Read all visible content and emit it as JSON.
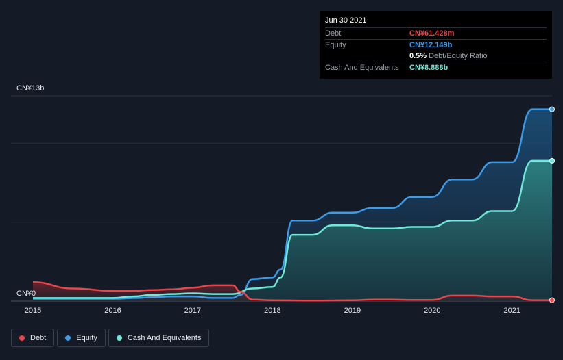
{
  "tooltip": {
    "date": "Jun 30 2021",
    "rows": [
      {
        "name": "Debt",
        "value": "CN¥61.428m",
        "color": "#e8464a"
      },
      {
        "name": "Equity",
        "value": "CN¥12.149b",
        "color": "#3b9be8"
      }
    ],
    "ratio_value": "0.5%",
    "ratio_label": "Debt/Equity Ratio",
    "cash": {
      "name": "Cash And Equivalents",
      "value": "CN¥8.888b",
      "color": "#6fe8d7"
    }
  },
  "legend": [
    {
      "label": "Debt",
      "color": "#e8464a"
    },
    {
      "label": "Equity",
      "color": "#3b9be8"
    },
    {
      "label": "Cash And Equivalents",
      "color": "#6fe8d7"
    }
  ],
  "chart_data": {
    "type": "area",
    "y_top_label": "CN¥13b",
    "y_zero_label": "CN¥0",
    "ylim": [
      0,
      13
    ],
    "y_unit": "CN¥ billions",
    "xlim": [
      2015.0,
      2021.5
    ],
    "x_ticks": [
      {
        "label": "2015",
        "value": 2015
      },
      {
        "label": "2016",
        "value": 2016
      },
      {
        "label": "2017",
        "value": 2017
      },
      {
        "label": "2018",
        "value": 2018
      },
      {
        "label": "2019",
        "value": 2019
      },
      {
        "label": "2020",
        "value": 2020
      },
      {
        "label": "2021",
        "value": 2021
      }
    ],
    "series": [
      {
        "name": "Equity",
        "color": "#3b9be8",
        "points": [
          [
            2015.0,
            0.15
          ],
          [
            2015.5,
            0.15
          ],
          [
            2016.0,
            0.15
          ],
          [
            2016.3,
            0.2
          ],
          [
            2016.5,
            0.25
          ],
          [
            2016.75,
            0.3
          ],
          [
            2017.0,
            0.3
          ],
          [
            2017.25,
            0.2
          ],
          [
            2017.5,
            0.2
          ],
          [
            2017.6,
            0.4
          ],
          [
            2017.75,
            1.4
          ],
          [
            2018.0,
            1.5
          ],
          [
            2018.1,
            2.0
          ],
          [
            2018.25,
            5.1
          ],
          [
            2018.5,
            5.1
          ],
          [
            2018.75,
            5.6
          ],
          [
            2019.0,
            5.6
          ],
          [
            2019.25,
            5.9
          ],
          [
            2019.5,
            5.9
          ],
          [
            2019.75,
            6.6
          ],
          [
            2020.0,
            6.6
          ],
          [
            2020.25,
            7.7
          ],
          [
            2020.5,
            7.7
          ],
          [
            2020.75,
            8.8
          ],
          [
            2021.0,
            8.8
          ],
          [
            2021.25,
            12.149
          ],
          [
            2021.5,
            12.149
          ]
        ]
      },
      {
        "name": "Cash And Equivalents",
        "color": "#6fe8d7",
        "points": [
          [
            2015.0,
            0.2
          ],
          [
            2015.5,
            0.2
          ],
          [
            2016.0,
            0.2
          ],
          [
            2016.25,
            0.3
          ],
          [
            2016.5,
            0.4
          ],
          [
            2016.75,
            0.45
          ],
          [
            2017.0,
            0.5
          ],
          [
            2017.25,
            0.45
          ],
          [
            2017.5,
            0.45
          ],
          [
            2017.75,
            0.8
          ],
          [
            2018.0,
            0.9
          ],
          [
            2018.1,
            1.5
          ],
          [
            2018.25,
            4.2
          ],
          [
            2018.5,
            4.2
          ],
          [
            2018.75,
            4.8
          ],
          [
            2019.0,
            4.8
          ],
          [
            2019.25,
            4.6
          ],
          [
            2019.5,
            4.6
          ],
          [
            2019.75,
            4.7
          ],
          [
            2020.0,
            4.7
          ],
          [
            2020.25,
            5.1
          ],
          [
            2020.5,
            5.1
          ],
          [
            2020.75,
            5.7
          ],
          [
            2021.0,
            5.7
          ],
          [
            2021.25,
            8.888
          ],
          [
            2021.5,
            8.888
          ]
        ]
      },
      {
        "name": "Debt",
        "color": "#e8464a",
        "points": [
          [
            2015.0,
            1.2
          ],
          [
            2015.5,
            0.8
          ],
          [
            2016.0,
            0.65
          ],
          [
            2016.25,
            0.65
          ],
          [
            2016.5,
            0.7
          ],
          [
            2016.75,
            0.75
          ],
          [
            2017.0,
            0.85
          ],
          [
            2017.25,
            1.0
          ],
          [
            2017.5,
            1.0
          ],
          [
            2017.6,
            0.6
          ],
          [
            2017.75,
            0.1
          ],
          [
            2018.0,
            0.05
          ],
          [
            2018.5,
            0.03
          ],
          [
            2019.0,
            0.05
          ],
          [
            2019.25,
            0.1
          ],
          [
            2019.5,
            0.1
          ],
          [
            2019.75,
            0.08
          ],
          [
            2020.0,
            0.08
          ],
          [
            2020.25,
            0.35
          ],
          [
            2020.5,
            0.35
          ],
          [
            2020.75,
            0.3
          ],
          [
            2021.0,
            0.3
          ],
          [
            2021.25,
            0.06
          ],
          [
            2021.5,
            0.061428
          ]
        ]
      }
    ]
  }
}
